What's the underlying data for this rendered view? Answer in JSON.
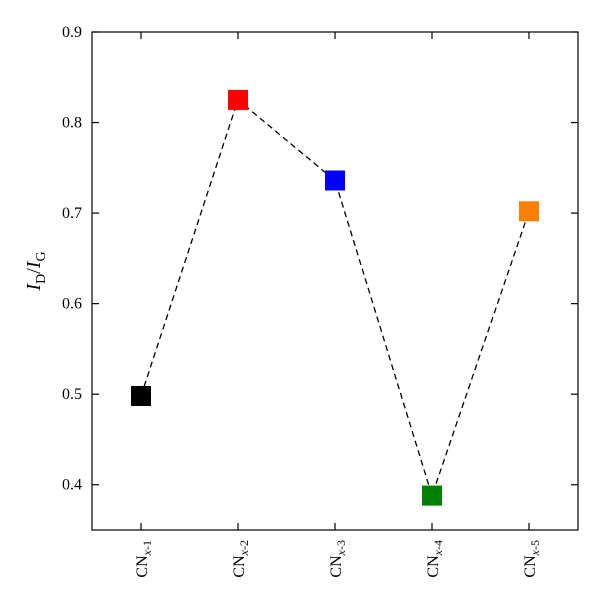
{
  "chart_data": {
    "type": "scatter",
    "title": "",
    "xlabel": "",
    "ylabel": {
      "main": "I",
      "main_sub": "D",
      "sep": "/",
      "denom": "I",
      "denom_sub": "G"
    },
    "categories": [
      {
        "base": "CN",
        "sub_italic": "x",
        "sub_rest": "-1"
      },
      {
        "base": "CN",
        "sub_italic": "x",
        "sub_rest": "-2"
      },
      {
        "base": "CN",
        "sub_italic": "x",
        "sub_rest": "-3"
      },
      {
        "base": "CN",
        "sub_italic": "x",
        "sub_rest": "-4"
      },
      {
        "base": "CN",
        "sub_italic": "x",
        "sub_rest": "-5"
      }
    ],
    "values": [
      0.498,
      0.825,
      0.736,
      0.388,
      0.702
    ],
    "colors": [
      "#000000",
      "#ff0000",
      "#0000ff",
      "#008000",
      "#ff8000"
    ],
    "marker": "square",
    "connector": {
      "style": "dashed",
      "color": "#000000"
    },
    "ylim": [
      0.35,
      0.9
    ],
    "yticks": [
      "0.4",
      "0.5",
      "0.6",
      "0.7",
      "0.8",
      "0.9"
    ],
    "grid": false,
    "legend": "none"
  }
}
